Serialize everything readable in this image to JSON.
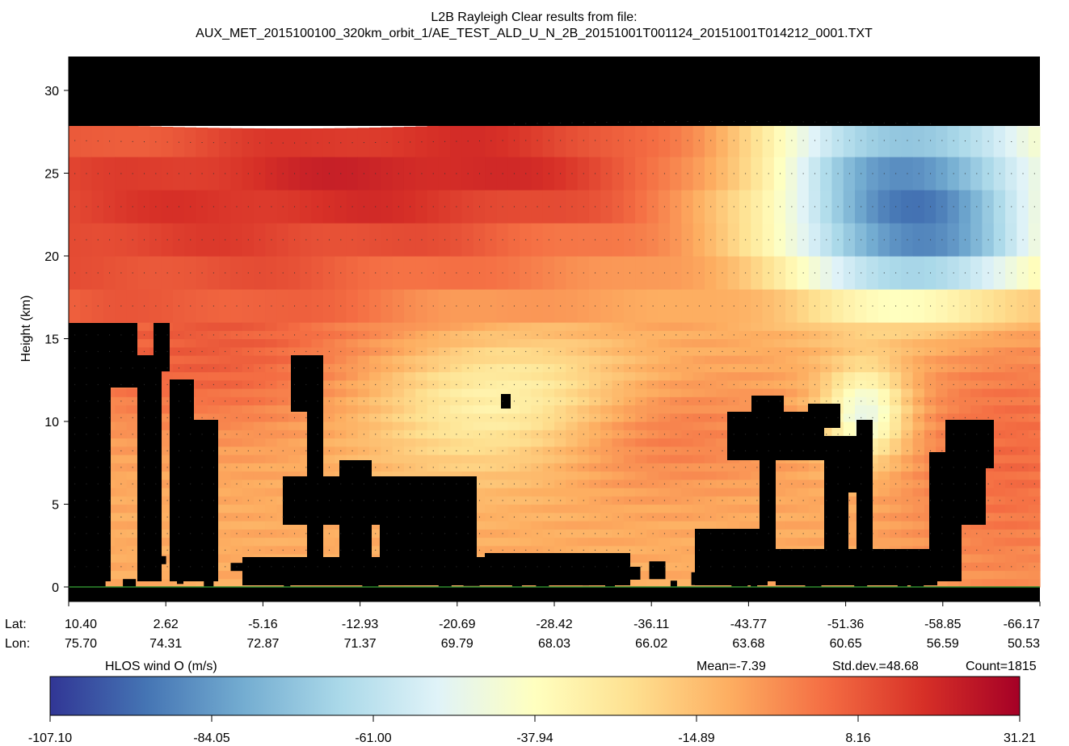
{
  "chart_data": {
    "type": "heatmap",
    "title_line1": "L2B Rayleigh Clear results from file:",
    "title_line2": "AUX_MET_2015100100_320km_orbit_1/AE_TEST_ALD_U_N_2B_20151001T001124_20151001T014212_0001.TXT",
    "ylabel": "Height (km)",
    "ylim": [
      -1,
      32
    ],
    "y_ticks": [
      "0",
      "5",
      "10",
      "15",
      "20",
      "25",
      "30"
    ],
    "y_tick_values": [
      0,
      5,
      10,
      15,
      20,
      25,
      30
    ],
    "x_axis_labels": {
      "lat": "Lat:",
      "lon": "Lon:"
    },
    "lat_ticks": [
      "10.40",
      "2.62",
      "-5.16",
      "-12.93",
      "-20.69",
      "-28.42",
      "-36.11",
      "-43.77",
      "-51.36",
      "-58.85",
      "-66.17"
    ],
    "lon_ticks": [
      "75.70",
      "74.31",
      "72.87",
      "71.37",
      "69.79",
      "68.03",
      "66.02",
      "63.68",
      "60.65",
      "56.59",
      "50.53"
    ],
    "colorbar": {
      "label": "HLOS wind O (m/s)",
      "ticks": [
        "-107.10",
        "-84.05",
        "-61.00",
        "-37.94",
        "-14.89",
        "8.16",
        "31.21"
      ],
      "min": -107.1,
      "max": 31.21,
      "colors": [
        "#313695",
        "#4575b4",
        "#74add1",
        "#abd9e9",
        "#e0f3f8",
        "#ffffbf",
        "#fee090",
        "#fdae61",
        "#f46d43",
        "#d73027",
        "#a50026"
      ]
    },
    "stats": {
      "mean": "Mean=-7.39",
      "std": "Std.dev.=48.68",
      "count": "Count=1815"
    },
    "no_data_color": "#000000",
    "ground_line_color": "#2e8b2e",
    "grid": false
  }
}
